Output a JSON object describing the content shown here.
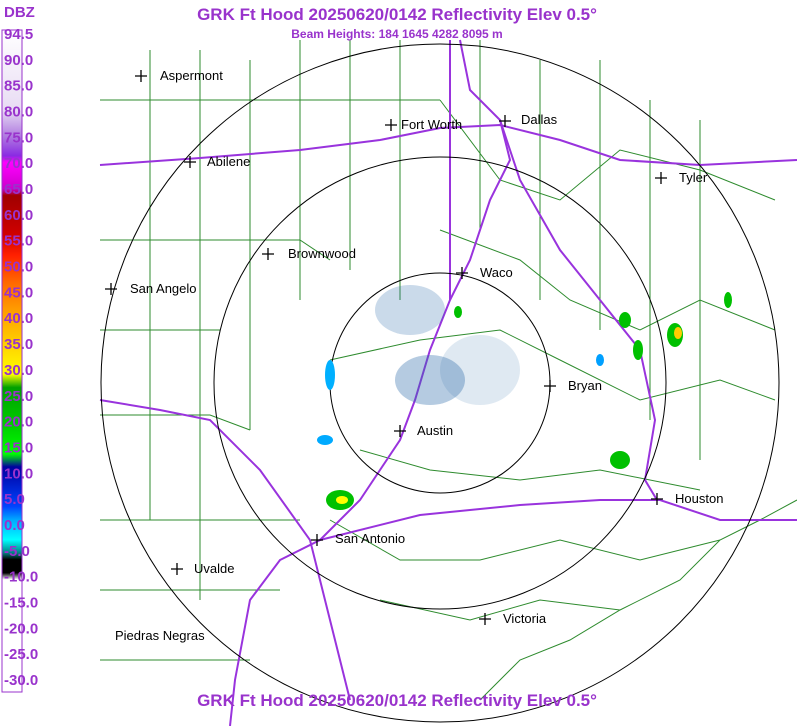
{
  "header": {
    "title": "GRK Ft Hood 20250620/0142 Reflectivity Elev 0.5°",
    "subtitle": "Beam Heights: 184 1645 4282 8095 m"
  },
  "legend": {
    "unit": "DBZ",
    "labels": [
      "94.5",
      "90.0",
      "85.0",
      "80.0",
      "75.0",
      "70.0",
      "65.0",
      "60.0",
      "55.0",
      "50.0",
      "45.0",
      "40.0",
      "35.0",
      "30.0",
      "25.0",
      "20.0",
      "15.0",
      "10.0",
      "5.0",
      "0.0",
      "-5.0",
      "-10.0",
      "-15.0",
      "-20.0",
      "-25.0",
      "-30.0"
    ]
  },
  "cities": [
    {
      "label": "Aspermont"
    },
    {
      "label": "Fort Worth"
    },
    {
      "label": "Dallas"
    },
    {
      "label": "Abilene"
    },
    {
      "label": "Tyler"
    },
    {
      "label": "Brownwood"
    },
    {
      "label": "Waco"
    },
    {
      "label": "San Angelo"
    },
    {
      "label": "Bryan"
    },
    {
      "label": "Austin"
    },
    {
      "label": "Houston"
    },
    {
      "label": "San Antonio"
    },
    {
      "label": "Uvalde"
    },
    {
      "label": "Piedras Negras"
    },
    {
      "label": "Victoria"
    }
  ],
  "footer": {
    "title": "GRK Ft Hood 20250620/0142 Reflectivity Elev 0.5°"
  }
}
